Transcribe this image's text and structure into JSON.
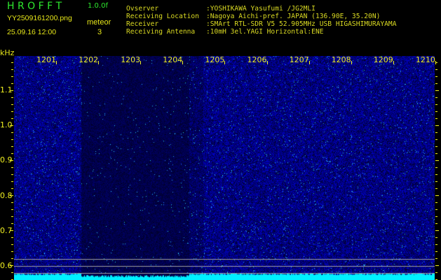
{
  "header": {
    "title": "H R O F F T",
    "version": "1.0.0f",
    "filename": "YY2509161200.png",
    "datetime": "25.09.16 12:00",
    "meteor_label": "meteor",
    "meteor_count": "3"
  },
  "info": [
    {
      "label": "Ovserver",
      "value": ":YOSHIKAWA Yasufumi /JG2MLI"
    },
    {
      "label": "Receiving Location",
      "value": ":Nagoya Aichi-pref. JAPAN (136.90E, 35.20N)"
    },
    {
      "label": "Receiver",
      "value": ":SMArt RTL-SDR V5 52.905MHz USB HIGASHIMURAYAMA"
    },
    {
      "label": "Receiving Antenna",
      "value": ":10mH 3el.YAGI Horizontal:ENE"
    }
  ],
  "spectrogram": {
    "y_unit": "kHz",
    "x_ticks": [
      "1201",
      "1202",
      "1203",
      "1204",
      "1205",
      "1206",
      "1207",
      "1208",
      "1209",
      "1210"
    ],
    "y_ticks": [
      "1.1",
      "1.0",
      "0.9",
      "0.8",
      "0.7",
      "0.6"
    ],
    "colors": {
      "background": "#000000",
      "noise": "#1a1ad0",
      "floor": "#00f0ff",
      "text": "#f0f020"
    }
  }
}
